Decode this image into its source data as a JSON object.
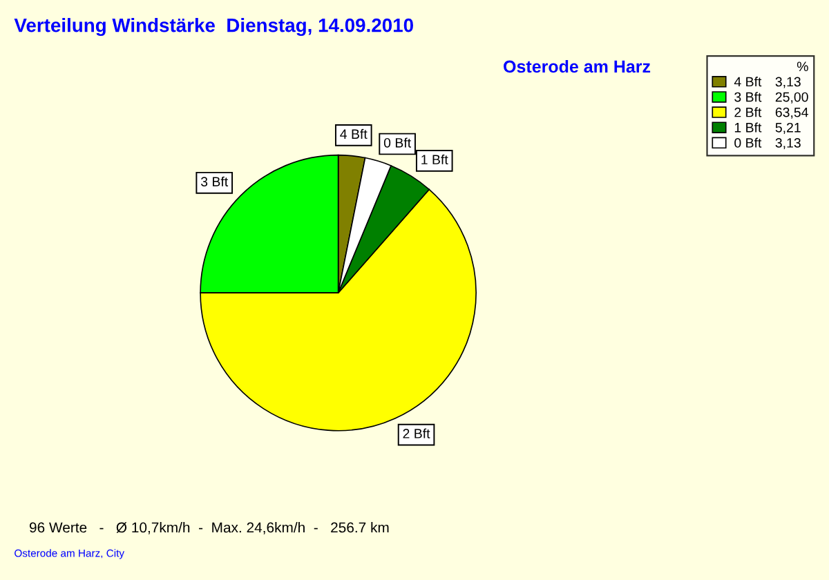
{
  "chart_data": {
    "type": "pie",
    "title": "Verteilung Windstärke  Dienstag, 14.09.2010",
    "subtitle": "Osterode am Harz",
    "categories": [
      "4 Bft",
      "3 Bft",
      "2 Bft",
      "1 Bft",
      "0 Bft"
    ],
    "values": [
      3.13,
      25.0,
      63.54,
      5.21,
      3.13
    ],
    "value_labels": [
      "3,13",
      "25,00",
      "63,54",
      "5,21",
      "3,13"
    ],
    "colors": [
      "#808000",
      "#00ff00",
      "#ffff00",
      "#008000",
      "#ffffff"
    ],
    "legend_title": "%",
    "legend": "top right",
    "annotations": [
      "96 Werte   -   Ø 10,7km/h  -  Max. 24,6km/h  -   256.7 km",
      "Osterode am Harz, City"
    ]
  }
}
